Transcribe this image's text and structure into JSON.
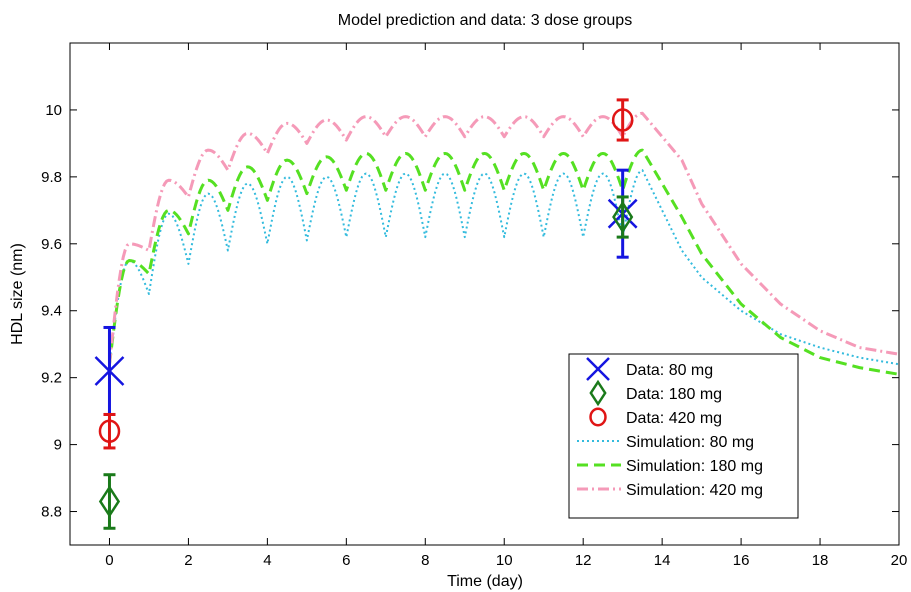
{
  "chart_data": {
    "type": "line",
    "title": "Model prediction and data: 3 dose groups",
    "xlabel": "Time (day)",
    "ylabel": "HDL size (nm)",
    "xlim": [
      -1,
      20
    ],
    "ylim": [
      8.7,
      10.2
    ],
    "xticks": [
      0,
      2,
      4,
      6,
      8,
      10,
      12,
      14,
      16,
      18,
      20
    ],
    "yticks": [
      8.8,
      9,
      9.2,
      9.4,
      9.6,
      9.8,
      10
    ],
    "xtick_labels": [
      "0",
      "2",
      "4",
      "6",
      "8",
      "10",
      "12",
      "14",
      "16",
      "18",
      "20"
    ],
    "ytick_labels": [
      "8.8",
      "9",
      "9.2",
      "9.4",
      "9.6",
      "9.8",
      "10"
    ],
    "grid": false,
    "legend": {
      "position": "bottom-right",
      "entries": [
        {
          "label": "Data: 80 mg",
          "color": "#1515e0",
          "marker": "x"
        },
        {
          "label": "Data: 180 mg",
          "color": "#1a7a1a",
          "marker": "diamond"
        },
        {
          "label": "Data: 420 mg",
          "color": "#e01515",
          "marker": "circle"
        },
        {
          "label": "Simulation: 80 mg",
          "color": "#33bbdd",
          "style": "dotted"
        },
        {
          "label": "Simulation: 180 mg",
          "color": "#55e022",
          "style": "dashed"
        },
        {
          "label": "Simulation: 420 mg",
          "color": "#f59ab8",
          "style": "dashdot"
        }
      ]
    },
    "data_series": [
      {
        "name": "Data: 80 mg",
        "color": "#1515e0",
        "marker": "x",
        "points": [
          {
            "x": 0,
            "y": 9.22,
            "err": 0.13
          },
          {
            "x": 13,
            "y": 9.69,
            "err": 0.13
          }
        ]
      },
      {
        "name": "Data: 180 mg",
        "color": "#1a7a1a",
        "marker": "diamond",
        "points": [
          {
            "x": 0,
            "y": 8.83,
            "err": 0.08
          },
          {
            "x": 13,
            "y": 9.68,
            "err": 0.06
          }
        ]
      },
      {
        "name": "Data: 420 mg",
        "color": "#e01515",
        "marker": "circle",
        "points": [
          {
            "x": 0,
            "y": 9.04,
            "err": 0.05
          },
          {
            "x": 13,
            "y": 9.97,
            "err": 0.06
          }
        ]
      }
    ],
    "simulations": [
      {
        "name": "Simulation: 80 mg",
        "color": "#33bbdd",
        "style": "dotted",
        "start": 9.24,
        "peaks": [
          9.55,
          9.69,
          9.75,
          9.78,
          9.8,
          9.8,
          9.81,
          9.81,
          9.81,
          9.81,
          9.81,
          9.81,
          9.81,
          9.82
        ],
        "troughs": [
          9.45,
          9.54,
          9.58,
          9.6,
          9.61,
          9.62,
          9.62,
          9.62,
          9.62,
          9.62,
          9.62,
          9.62,
          9.62
        ],
        "washout": [
          [
            14.5,
            9.58
          ],
          [
            15,
            9.5
          ],
          [
            16,
            9.4
          ],
          [
            17,
            9.33
          ],
          [
            18,
            9.29
          ],
          [
            19,
            9.26
          ],
          [
            20,
            9.24
          ]
        ]
      },
      {
        "name": "Simulation: 180 mg",
        "color": "#55e022",
        "style": "dashed",
        "start": 9.24,
        "peaks": [
          9.55,
          9.7,
          9.79,
          9.83,
          9.85,
          9.86,
          9.87,
          9.87,
          9.87,
          9.87,
          9.87,
          9.87,
          9.87,
          9.88
        ],
        "troughs": [
          9.51,
          9.63,
          9.7,
          9.73,
          9.75,
          9.76,
          9.76,
          9.76,
          9.76,
          9.76,
          9.76,
          9.76,
          9.76
        ],
        "washout": [
          [
            14.5,
            9.68
          ],
          [
            15,
            9.57
          ],
          [
            16,
            9.42
          ],
          [
            17,
            9.32
          ],
          [
            18,
            9.26
          ],
          [
            19,
            9.23
          ],
          [
            20,
            9.21
          ]
        ]
      },
      {
        "name": "Simulation: 420 mg",
        "color": "#f59ab8",
        "style": "dashdot",
        "start": 9.24,
        "peaks": [
          9.6,
          9.79,
          9.88,
          9.93,
          9.96,
          9.97,
          9.98,
          9.98,
          9.98,
          9.98,
          9.98,
          9.98,
          9.98,
          9.99
        ],
        "troughs": [
          9.58,
          9.74,
          9.82,
          9.87,
          9.9,
          9.91,
          9.92,
          9.92,
          9.92,
          9.92,
          9.92,
          9.92,
          9.92
        ],
        "washout": [
          [
            14.5,
            9.85
          ],
          [
            15,
            9.72
          ],
          [
            16,
            9.54
          ],
          [
            17,
            9.42
          ],
          [
            18,
            9.34
          ],
          [
            19,
            9.29
          ],
          [
            20,
            9.27
          ]
        ]
      }
    ]
  }
}
